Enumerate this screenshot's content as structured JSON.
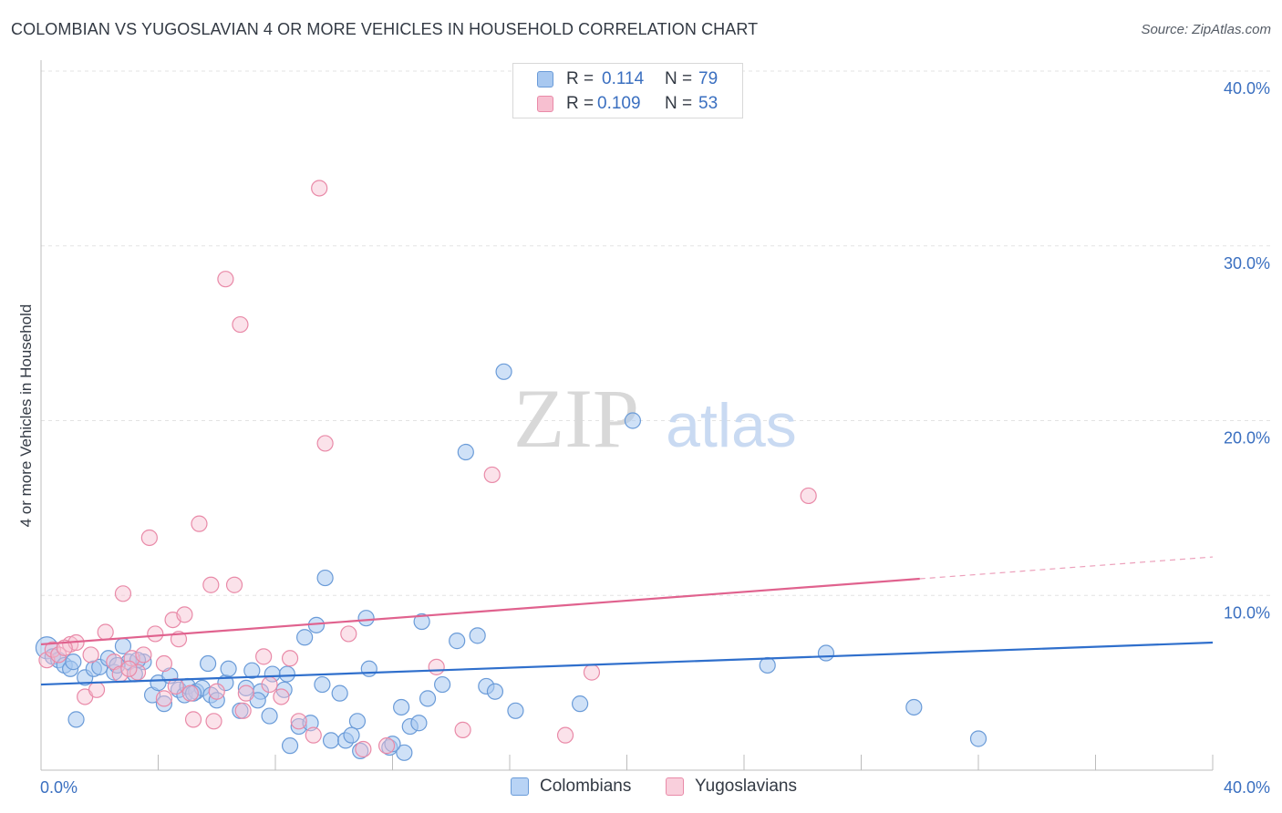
{
  "title": "COLOMBIAN VS YUGOSLAVIAN 4 OR MORE VEHICLES IN HOUSEHOLD CORRELATION CHART",
  "source": "Source: ZipAtlas.com",
  "watermark": {
    "zip": "ZIP",
    "atlas": "atlas"
  },
  "legend": {
    "rows": [
      {
        "r_label": "R =",
        "r_value": "0.114",
        "n_label": "N =",
        "n_value": "79",
        "color": "#a8c8f0",
        "border": "#6a9bd8"
      },
      {
        "r_label": "R =",
        "r_value": "0.109",
        "n_label": "N =",
        "n_value": "53",
        "color": "#f7bfd0",
        "border": "#e98aa8"
      }
    ]
  },
  "bottom_legend": [
    {
      "label": "Colombians",
      "color": "#b8d3f5",
      "border": "#6a9bd8"
    },
    {
      "label": "Yugoslavians",
      "color": "#f9cfdc",
      "border": "#e98aa8"
    }
  ],
  "chart_data": {
    "type": "scatter",
    "title": "COLOMBIAN VS YUGOSLAVIAN 4 OR MORE VEHICLES IN HOUSEHOLD CORRELATION CHART",
    "xlabel": "",
    "ylabel": "4 or more Vehicles in Household",
    "xlim": [
      0,
      40
    ],
    "ylim": [
      0,
      40
    ],
    "x_tick_labels": [
      "0.0%",
      "40.0%"
    ],
    "y_tick_labels": [
      "10.0%",
      "20.0%",
      "30.0%",
      "40.0%"
    ],
    "y_ticks": [
      10,
      20,
      30,
      40
    ],
    "grid": true,
    "series": [
      {
        "name": "Colombians",
        "color": "#6a9bd8",
        "fill": "rgba(168,200,240,0.55)",
        "trend": {
          "x0": 0,
          "y0": 4.9,
          "x1": 40,
          "y1": 7.3,
          "dash_from": null,
          "color": "#2f6fcc"
        },
        "points": [
          [
            0.2,
            7.0
          ],
          [
            0.4,
            6.5
          ],
          [
            0.6,
            6.3
          ],
          [
            0.8,
            6.0
          ],
          [
            1.0,
            5.8
          ],
          [
            1.2,
            2.9
          ],
          [
            1.5,
            5.3
          ],
          [
            1.8,
            5.8
          ],
          [
            2.0,
            5.9
          ],
          [
            2.3,
            6.4
          ],
          [
            2.5,
            5.6
          ],
          [
            2.8,
            7.1
          ],
          [
            3.0,
            6.2
          ],
          [
            3.2,
            5.5
          ],
          [
            3.5,
            6.2
          ],
          [
            3.8,
            4.3
          ],
          [
            4.0,
            5.0
          ],
          [
            4.2,
            3.8
          ],
          [
            4.4,
            5.4
          ],
          [
            4.7,
            4.6
          ],
          [
            4.9,
            4.3
          ],
          [
            5.0,
            4.8
          ],
          [
            5.3,
            4.5
          ],
          [
            5.5,
            4.7
          ],
          [
            5.7,
            6.1
          ],
          [
            5.8,
            4.3
          ],
          [
            6.0,
            4.0
          ],
          [
            6.3,
            5.0
          ],
          [
            6.4,
            5.8
          ],
          [
            6.8,
            3.4
          ],
          [
            7.0,
            4.7
          ],
          [
            7.2,
            5.7
          ],
          [
            7.5,
            4.5
          ],
          [
            7.8,
            3.1
          ],
          [
            7.9,
            5.5
          ],
          [
            8.3,
            4.6
          ],
          [
            8.4,
            5.5
          ],
          [
            8.5,
            1.4
          ],
          [
            8.8,
            2.5
          ],
          [
            9.0,
            7.6
          ],
          [
            9.2,
            2.7
          ],
          [
            9.4,
            8.3
          ],
          [
            9.6,
            4.9
          ],
          [
            9.9,
            1.7
          ],
          [
            10.2,
            4.4
          ],
          [
            10.4,
            1.7
          ],
          [
            10.8,
            2.8
          ],
          [
            10.9,
            1.1
          ],
          [
            11.2,
            5.8
          ],
          [
            11.9,
            1.3
          ],
          [
            12.3,
            3.6
          ],
          [
            12.6,
            2.5
          ],
          [
            12.9,
            2.7
          ],
          [
            13.0,
            8.5
          ],
          [
            13.2,
            4.1
          ],
          [
            13.7,
            4.9
          ],
          [
            14.2,
            7.4
          ],
          [
            14.5,
            18.2
          ],
          [
            14.9,
            7.7
          ],
          [
            15.2,
            4.8
          ],
          [
            15.5,
            4.5
          ],
          [
            15.8,
            22.8
          ],
          [
            16.2,
            3.4
          ],
          [
            9.7,
            11.0
          ],
          [
            11.1,
            8.7
          ],
          [
            12.4,
            1.0
          ],
          [
            7.4,
            4.0
          ],
          [
            10.6,
            2.0
          ],
          [
            12.0,
            1.5
          ],
          [
            18.4,
            3.8
          ],
          [
            20.2,
            20.0
          ],
          [
            24.8,
            6.0
          ],
          [
            26.8,
            6.7
          ],
          [
            29.8,
            3.6
          ],
          [
            32.0,
            1.8
          ],
          [
            1.1,
            6.2
          ],
          [
            2.6,
            6.0
          ],
          [
            3.3,
            6.3
          ],
          [
            5.2,
            4.4
          ]
        ]
      },
      {
        "name": "Yugoslavians",
        "color": "#e98aa8",
        "fill": "rgba(247,191,208,0.45)",
        "trend": {
          "x0": 0,
          "y0": 7.2,
          "x1": 40,
          "y1": 12.2,
          "dash_from": 30,
          "color": "#e0628e"
        },
        "points": [
          [
            0.2,
            6.3
          ],
          [
            0.4,
            6.9
          ],
          [
            0.6,
            6.6
          ],
          [
            1.0,
            7.2
          ],
          [
            1.2,
            7.3
          ],
          [
            1.5,
            4.2
          ],
          [
            1.7,
            6.6
          ],
          [
            1.9,
            4.6
          ],
          [
            2.2,
            7.9
          ],
          [
            2.5,
            6.2
          ],
          [
            2.7,
            5.5
          ],
          [
            2.8,
            10.1
          ],
          [
            3.1,
            6.4
          ],
          [
            3.3,
            5.6
          ],
          [
            3.5,
            6.6
          ],
          [
            3.7,
            13.3
          ],
          [
            3.9,
            7.8
          ],
          [
            4.2,
            4.1
          ],
          [
            4.2,
            6.1
          ],
          [
            4.5,
            8.6
          ],
          [
            4.7,
            7.5
          ],
          [
            4.9,
            8.9
          ],
          [
            5.1,
            4.4
          ],
          [
            5.2,
            2.9
          ],
          [
            5.4,
            14.1
          ],
          [
            5.8,
            10.6
          ],
          [
            5.9,
            2.8
          ],
          [
            6.3,
            28.1
          ],
          [
            6.6,
            10.6
          ],
          [
            6.8,
            25.5
          ],
          [
            6.9,
            3.4
          ],
          [
            7.0,
            4.4
          ],
          [
            7.6,
            6.5
          ],
          [
            7.8,
            4.9
          ],
          [
            8.2,
            4.2
          ],
          [
            8.5,
            6.4
          ],
          [
            8.8,
            2.8
          ],
          [
            9.3,
            2.0
          ],
          [
            9.5,
            33.3
          ],
          [
            9.7,
            18.7
          ],
          [
            10.5,
            7.8
          ],
          [
            11.8,
            1.4
          ],
          [
            13.5,
            5.9
          ],
          [
            14.4,
            2.3
          ],
          [
            15.4,
            16.9
          ],
          [
            17.9,
            2.0
          ],
          [
            18.8,
            5.6
          ],
          [
            26.2,
            15.7
          ],
          [
            0.8,
            7.0
          ],
          [
            3.0,
            5.8
          ],
          [
            6.0,
            4.5
          ],
          [
            4.6,
            4.8
          ],
          [
            11.0,
            1.2
          ]
        ]
      }
    ]
  }
}
